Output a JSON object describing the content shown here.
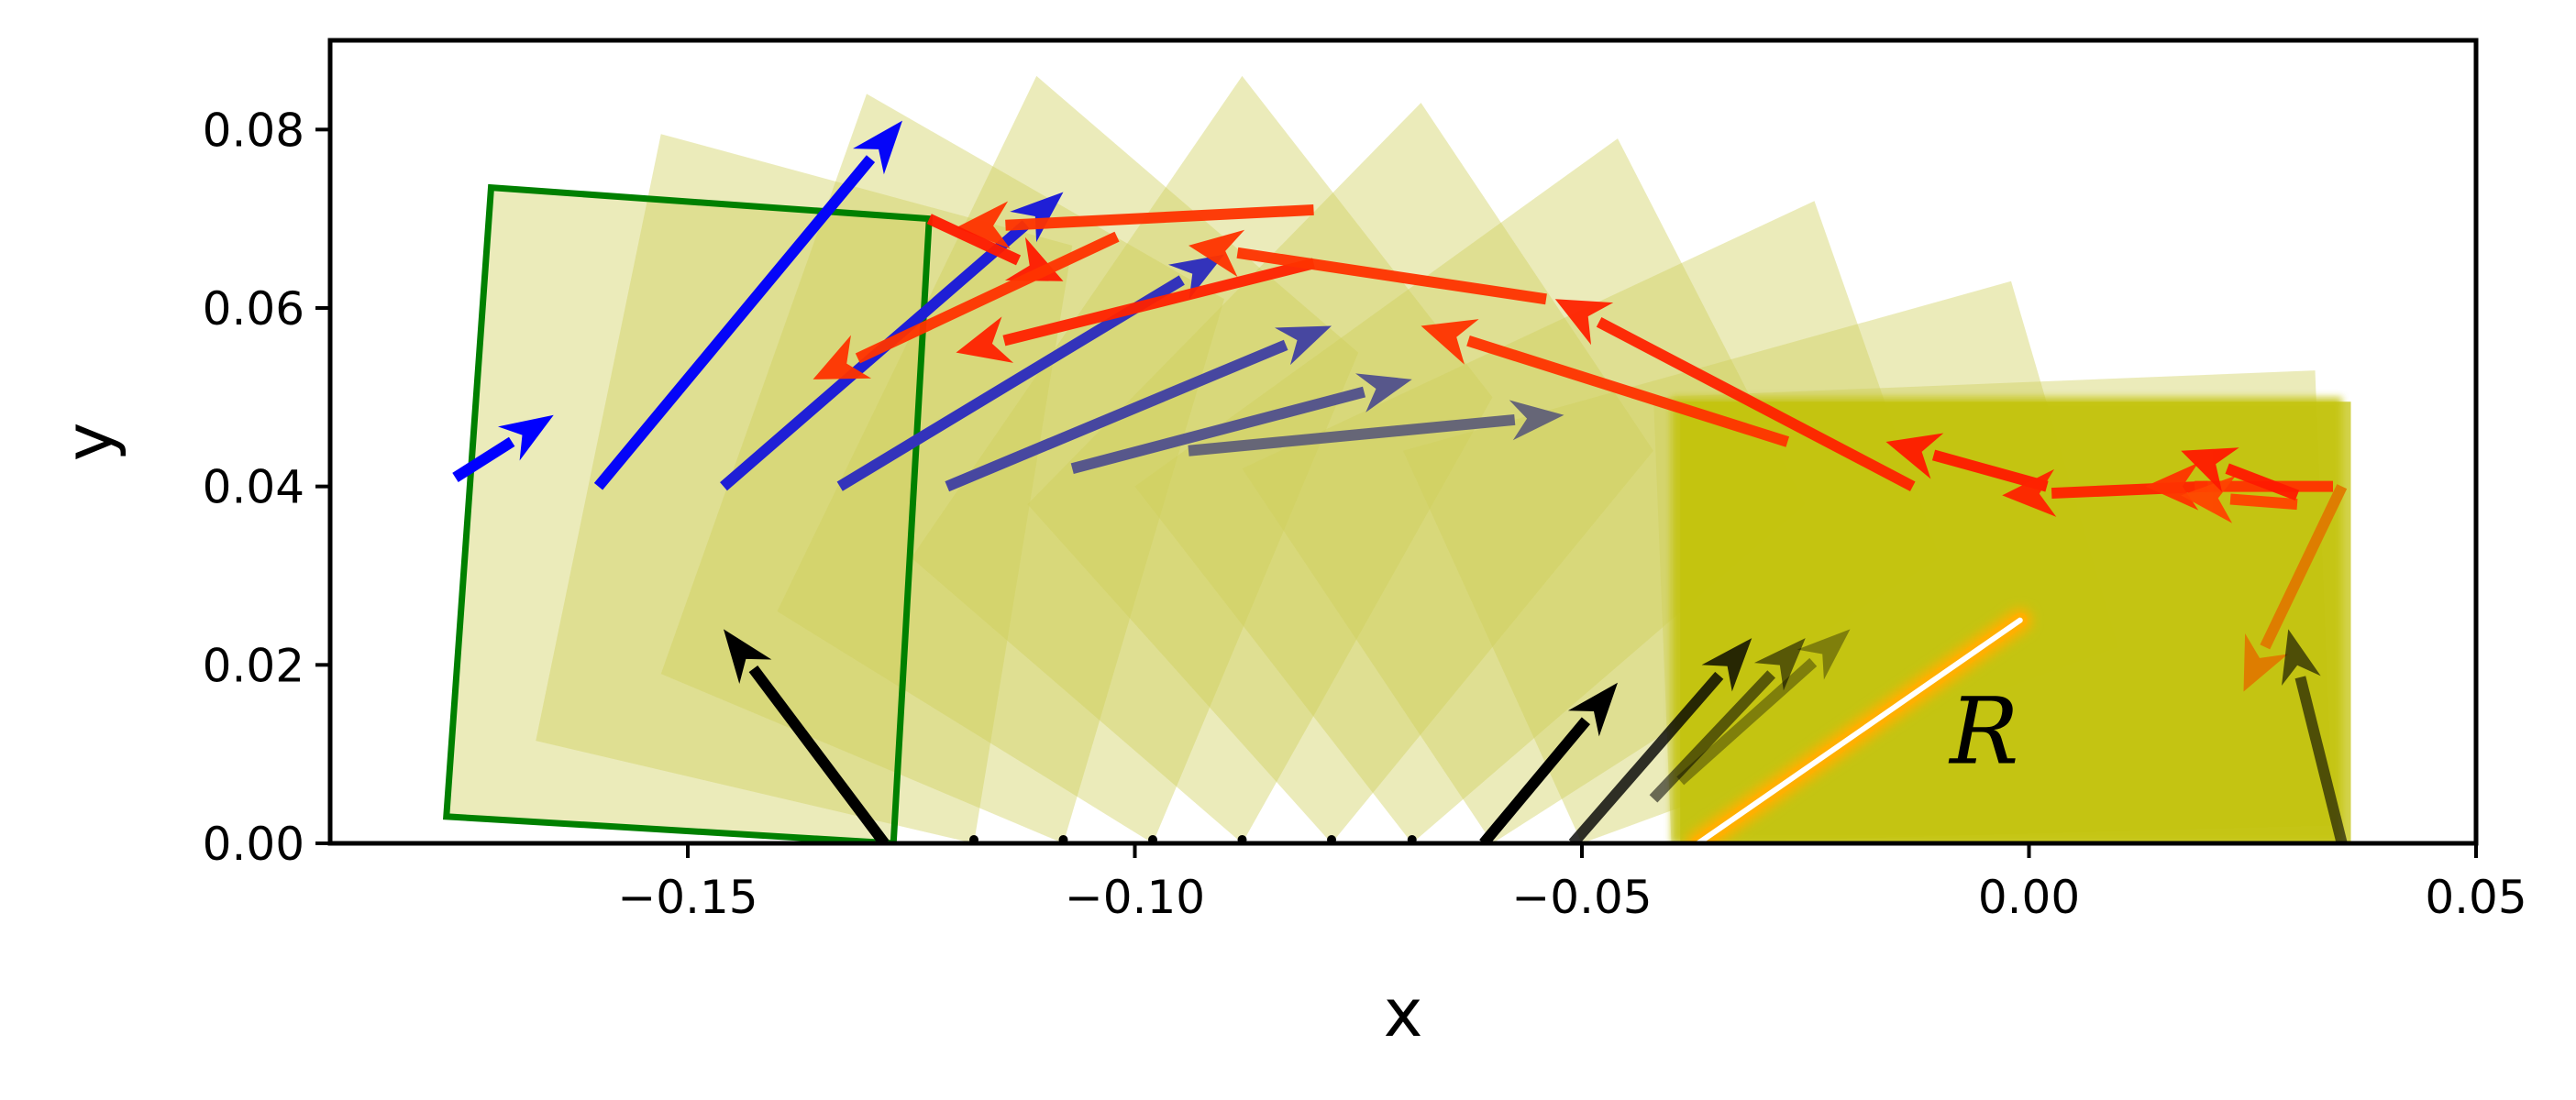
{
  "chart_data": {
    "type": "line",
    "title": "",
    "xlabel": "x",
    "ylabel": "y",
    "xlim": [
      -0.19,
      0.05
    ],
    "ylim": [
      0.0,
      0.09
    ],
    "xticks": [
      -0.15,
      -0.1,
      -0.05,
      0.0,
      0.05
    ],
    "xtick_labels": [
      "−0.15",
      "−0.10",
      "−0.05",
      "0.00",
      "0.05"
    ],
    "yticks": [
      0.0,
      0.02,
      0.04,
      0.06,
      0.08
    ],
    "ytick_labels": [
      "0.00",
      "0.02",
      "0.04",
      "0.06",
      "0.08"
    ],
    "grid": false,
    "annotation": {
      "text": "R",
      "x": -0.005,
      "y": 0.009
    },
    "colors": {
      "square_fill": "#cfcf5a",
      "settled_fill": "#c3c30c",
      "outline": "#008000",
      "velocity_start": "#0000ff",
      "velocity_end": "#666677",
      "force": "#ff0000",
      "support": "#000000",
      "contact_glow": "#ffb000"
    },
    "squares": [
      {
        "corners": [
          [
            -0.127,
            0.0
          ],
          [
            -0.177,
            0.003
          ],
          [
            -0.172,
            0.0735
          ],
          [
            -0.123,
            0.07
          ]
        ]
      },
      {
        "corners": [
          [
            -0.118,
            0.0
          ],
          [
            -0.167,
            0.0115
          ],
          [
            -0.153,
            0.0795
          ],
          [
            -0.107,
            0.067
          ]
        ]
      },
      {
        "corners": [
          [
            -0.108,
            0.0
          ],
          [
            -0.153,
            0.019
          ],
          [
            -0.13,
            0.084
          ],
          [
            -0.09,
            0.061
          ]
        ]
      },
      {
        "corners": [
          [
            -0.098,
            0.0
          ],
          [
            -0.14,
            0.026
          ],
          [
            -0.111,
            0.086
          ],
          [
            -0.075,
            0.055
          ]
        ]
      },
      {
        "corners": [
          [
            -0.088,
            0.0
          ],
          [
            -0.125,
            0.032
          ],
          [
            -0.088,
            0.086
          ],
          [
            -0.06,
            0.05
          ]
        ]
      },
      {
        "corners": [
          [
            -0.078,
            0.0
          ],
          [
            -0.112,
            0.038
          ],
          [
            -0.068,
            0.083
          ],
          [
            -0.042,
            0.044
          ]
        ]
      },
      {
        "corners": [
          [
            -0.069,
            0.0
          ],
          [
            -0.1,
            0.04
          ],
          [
            -0.046,
            0.079
          ],
          [
            -0.025,
            0.038
          ]
        ]
      },
      {
        "corners": [
          [
            -0.06,
            0.0
          ],
          [
            -0.088,
            0.042
          ],
          [
            -0.024,
            0.072
          ],
          [
            -0.01,
            0.032
          ]
        ]
      },
      {
        "corners": [
          [
            -0.05,
            0.0
          ],
          [
            -0.07,
            0.044
          ],
          [
            -0.002,
            0.063
          ],
          [
            0.01,
            0.022
          ]
        ]
      },
      {
        "corners": [
          [
            -0.04,
            0.0
          ],
          [
            -0.042,
            0.05
          ],
          [
            0.032,
            0.053
          ],
          [
            0.034,
            0.002
          ]
        ]
      }
    ],
    "settled_block": {
      "corners": [
        [
          -0.04,
          0.0
        ],
        [
          -0.04,
          0.05
        ],
        [
          0.035,
          0.05
        ],
        [
          0.035,
          0.0
        ]
      ]
    },
    "velocity_arrows": [
      {
        "x0": -0.176,
        "y0": 0.041,
        "x1": -0.165,
        "y1": 0.048,
        "t": 0.0
      },
      {
        "x0": -0.16,
        "y0": 0.04,
        "x1": -0.126,
        "y1": 0.081,
        "t": 0.05
      },
      {
        "x0": -0.146,
        "y0": 0.04,
        "x1": -0.108,
        "y1": 0.073,
        "t": 0.3
      },
      {
        "x0": -0.133,
        "y0": 0.04,
        "x1": -0.09,
        "y1": 0.066,
        "t": 0.5
      },
      {
        "x0": -0.121,
        "y0": 0.04,
        "x1": -0.078,
        "y1": 0.058,
        "t": 0.7
      },
      {
        "x0": -0.107,
        "y0": 0.042,
        "x1": -0.069,
        "y1": 0.052,
        "t": 0.85
      },
      {
        "x0": -0.094,
        "y0": 0.044,
        "x1": -0.052,
        "y1": 0.048,
        "t": 1.0
      }
    ],
    "force_arrows": [
      {
        "x0": -0.08,
        "y0": 0.071,
        "x1": -0.12,
        "y1": 0.069,
        "c": "#ff3300"
      },
      {
        "x0": -0.123,
        "y0": 0.07,
        "x1": -0.108,
        "y1": 0.063,
        "c": "#ff1a00"
      },
      {
        "x0": -0.102,
        "y0": 0.068,
        "x1": -0.136,
        "y1": 0.052,
        "c": "#ff3300"
      },
      {
        "x0": -0.08,
        "y0": 0.065,
        "x1": -0.12,
        "y1": 0.055,
        "c": "#ff2200"
      },
      {
        "x0": -0.054,
        "y0": 0.061,
        "x1": -0.094,
        "y1": 0.067,
        "c": "#ff3300"
      },
      {
        "x0": -0.027,
        "y0": 0.045,
        "x1": -0.068,
        "y1": 0.058,
        "c": "#ff3300"
      },
      {
        "x0": -0.013,
        "y0": 0.04,
        "x1": -0.053,
        "y1": 0.061,
        "c": "#ff2200"
      },
      {
        "x0": 0.002,
        "y0": 0.04,
        "x1": -0.016,
        "y1": 0.045,
        "c": "#ff1a00"
      },
      {
        "x0": 0.02,
        "y0": 0.04,
        "x1": -0.003,
        "y1": 0.039,
        "c": "#ff2200"
      },
      {
        "x0": 0.034,
        "y0": 0.04,
        "x1": 0.013,
        "y1": 0.04,
        "c": "#ff3300"
      },
      {
        "x0": 0.03,
        "y0": 0.038,
        "x1": 0.017,
        "y1": 0.039,
        "c": "#ff4400"
      },
      {
        "x0": 0.03,
        "y0": 0.039,
        "x1": 0.017,
        "y1": 0.044,
        "c": "#ff1a00"
      },
      {
        "x0": 0.035,
        "y0": 0.04,
        "x1": 0.024,
        "y1": 0.017,
        "c": "#e07a00"
      }
    ],
    "support_arrows": [
      {
        "x0": -0.128,
        "y0": 0.0,
        "x1": -0.146,
        "y1": 0.024,
        "alpha": 1.0
      },
      {
        "x0": -0.061,
        "y0": 0.0,
        "x1": -0.046,
        "y1": 0.018,
        "alpha": 1.0
      },
      {
        "x0": -0.051,
        "y0": 0.0,
        "x1": -0.031,
        "y1": 0.023,
        "alpha": 0.8
      },
      {
        "x0": -0.042,
        "y0": 0.005,
        "x1": -0.025,
        "y1": 0.023,
        "alpha": 0.55
      },
      {
        "x0": -0.039,
        "y0": 0.007,
        "x1": -0.02,
        "y1": 0.024,
        "alpha": 0.35
      },
      {
        "x0": 0.035,
        "y0": 0.0,
        "x1": 0.029,
        "y1": 0.024,
        "alpha": 0.6
      }
    ],
    "ground_dots": [
      -0.118,
      -0.108,
      -0.098,
      -0.088,
      -0.078,
      -0.069
    ],
    "contact_segment": {
      "x0": -0.037,
      "y0": 0.0,
      "x1": -0.001,
      "y1": 0.025
    }
  }
}
